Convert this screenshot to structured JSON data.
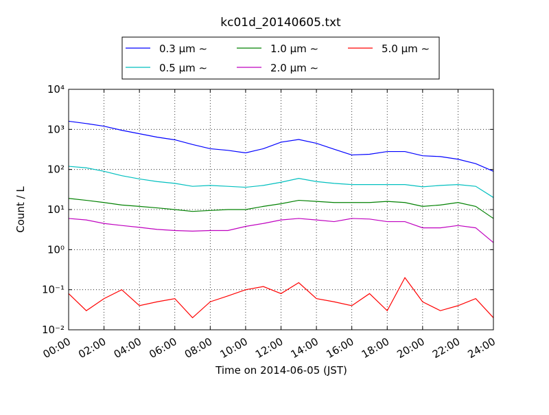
{
  "chart_data": {
    "type": "line",
    "title": "kc01d_20140605.txt",
    "x_label": "Time on 2014-06-05 (JST)",
    "y_label": "Count / L",
    "log_y": true,
    "grid": true,
    "legend": "top",
    "x": [
      0,
      1,
      2,
      3,
      4,
      5,
      6,
      7,
      8,
      9,
      10,
      11,
      12,
      13,
      14,
      15,
      16,
      17,
      18,
      19,
      20,
      21,
      22,
      23,
      24
    ],
    "xlim": [
      0,
      24
    ],
    "xticks": [
      {
        "value": 0,
        "label": "00:00"
      },
      {
        "value": 2,
        "label": "02:00"
      },
      {
        "value": 4,
        "label": "04:00"
      },
      {
        "value": 6,
        "label": "06:00"
      },
      {
        "value": 8,
        "label": "08:00"
      },
      {
        "value": 10,
        "label": "10:00"
      },
      {
        "value": 12,
        "label": "12:00"
      },
      {
        "value": 14,
        "label": "14:00"
      },
      {
        "value": 16,
        "label": "16:00"
      },
      {
        "value": 18,
        "label": "18:00"
      },
      {
        "value": 20,
        "label": "20:00"
      },
      {
        "value": 22,
        "label": "22:00"
      },
      {
        "value": 24,
        "label": "24:00"
      }
    ],
    "ylim": [
      0.01,
      10000
    ],
    "yticks": [
      {
        "value": 0.01,
        "label": "10⁻²"
      },
      {
        "value": 0.1,
        "label": "10⁻¹"
      },
      {
        "value": 1,
        "label": "10⁰"
      },
      {
        "value": 10,
        "label": "10¹"
      },
      {
        "value": 100,
        "label": "10²"
      },
      {
        "value": 1000,
        "label": "10³"
      },
      {
        "value": 10000,
        "label": "10⁴"
      }
    ],
    "series": [
      {
        "name": "0.3 μm ∼",
        "color": "#0000ff",
        "values": [
          1600,
          1400,
          1200,
          950,
          780,
          640,
          550,
          420,
          330,
          300,
          260,
          330,
          480,
          560,
          450,
          320,
          230,
          240,
          280,
          280,
          220,
          210,
          180,
          140,
          90
        ]
      },
      {
        "name": "0.5 μm ∼",
        "color": "#00bfbf",
        "values": [
          120,
          110,
          90,
          70,
          58,
          50,
          45,
          38,
          40,
          38,
          36,
          40,
          48,
          60,
          50,
          45,
          42,
          42,
          42,
          42,
          37,
          40,
          42,
          38,
          20
        ]
      },
      {
        "name": "1.0 μm ∼",
        "color": "#008000",
        "values": [
          19,
          17,
          15,
          13,
          12,
          11,
          10,
          9,
          9.5,
          10,
          10,
          12,
          14,
          17,
          16,
          15,
          15,
          15,
          16,
          15,
          12,
          13,
          15,
          12,
          6
        ]
      },
      {
        "name": "2.0 μm ∼",
        "color": "#bf00bf",
        "values": [
          6,
          5.5,
          4.5,
          4,
          3.6,
          3.2,
          3,
          2.9,
          3,
          3,
          3.8,
          4.5,
          5.5,
          6,
          5.5,
          5,
          6,
          5.8,
          5,
          5,
          3.5,
          3.5,
          4,
          3.5,
          1.5
        ]
      },
      {
        "name": "5.0 μm ∼",
        "color": "#ff0000",
        "values": [
          0.08,
          0.03,
          0.06,
          0.1,
          0.04,
          0.05,
          0.06,
          0.02,
          0.05,
          0.07,
          0.1,
          0.12,
          0.08,
          0.15,
          0.06,
          0.05,
          0.04,
          0.08,
          0.03,
          0.2,
          0.05,
          0.03,
          0.04,
          0.06,
          0.02
        ]
      }
    ]
  }
}
